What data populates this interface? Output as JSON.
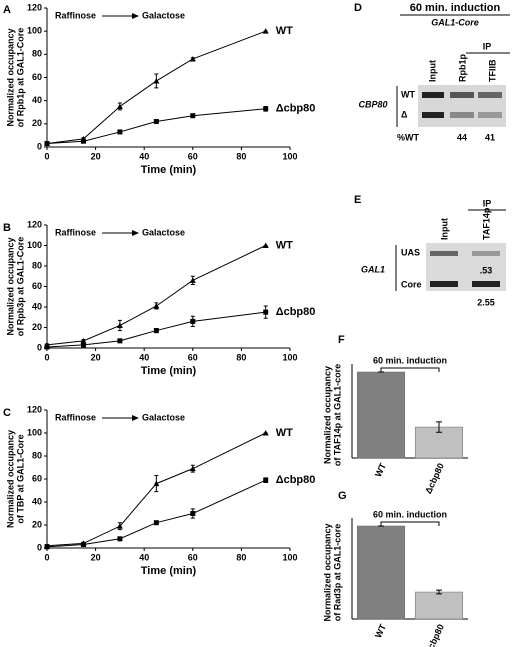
{
  "chart_data": [
    {
      "type": "line",
      "panel": "A",
      "xlabel": "Time (min)",
      "ylabel": [
        "Normalized occupancy",
        "of Rpb1p at GAL1-Core"
      ],
      "annotations": [
        "Raffinose",
        "Galactose"
      ],
      "x": [
        0,
        15,
        30,
        45,
        60,
        90
      ],
      "xlim": [
        0,
        100
      ],
      "xticks": [
        0,
        20,
        40,
        60,
        80,
        100
      ],
      "ylim": [
        0,
        120
      ],
      "yticks": [
        0,
        20,
        40,
        60,
        80,
        100,
        120
      ],
      "series": [
        {
          "name": "WT",
          "color": "#000000",
          "marker": "triangle",
          "values": [
            3,
            7,
            35,
            57,
            76,
            100
          ],
          "errors": [
            1,
            1,
            3,
            6,
            1,
            0
          ]
        },
        {
          "name": "Δcbp80",
          "color": "#000000",
          "marker": "square",
          "values": [
            3,
            5,
            13,
            22,
            27,
            33
          ],
          "errors": [
            1,
            1,
            1,
            1,
            1,
            2
          ]
        }
      ]
    },
    {
      "type": "line",
      "panel": "B",
      "xlabel": "Time (min)",
      "ylabel": [
        "Normalized occupancy",
        "of Rpb3p at GAL1-Core"
      ],
      "annotations": [
        "Raffinose",
        "Galactose"
      ],
      "x": [
        0,
        15,
        30,
        45,
        60,
        90
      ],
      "xlim": [
        0,
        100
      ],
      "xticks": [
        0,
        20,
        40,
        60,
        80,
        100
      ],
      "ylim": [
        0,
        120
      ],
      "yticks": [
        0,
        20,
        40,
        60,
        80,
        100,
        120
      ],
      "series": [
        {
          "name": "WT",
          "color": "#000000",
          "marker": "triangle",
          "values": [
            3,
            7,
            22,
            41,
            66,
            100
          ],
          "errors": [
            1,
            1,
            5,
            3,
            4,
            0
          ]
        },
        {
          "name": "Δcbp80",
          "color": "#000000",
          "marker": "square",
          "values": [
            1,
            3,
            7,
            17,
            26,
            35
          ],
          "errors": [
            0,
            0,
            1,
            2,
            5,
            6
          ]
        }
      ]
    },
    {
      "type": "line",
      "panel": "C",
      "xlabel": "Time (min)",
      "ylabel": [
        "Normalized occupancy",
        "of TBP at GAL1-Core"
      ],
      "annotations": [
        "Raffinose",
        "Galactose"
      ],
      "x": [
        0,
        15,
        30,
        45,
        60,
        90
      ],
      "xlim": [
        0,
        100
      ],
      "xticks": [
        0,
        20,
        40,
        60,
        80,
        100
      ],
      "ylim": [
        0,
        120
      ],
      "yticks": [
        0,
        20,
        40,
        60,
        80,
        100,
        120
      ],
      "series": [
        {
          "name": "WT",
          "color": "#000000",
          "marker": "triangle",
          "values": [
            2,
            4,
            19,
            56,
            69,
            100
          ],
          "errors": [
            1,
            1,
            3,
            7,
            3,
            0
          ]
        },
        {
          "name": "Δcbp80",
          "color": "#000000",
          "marker": "square",
          "values": [
            1,
            3,
            8,
            22,
            30,
            59
          ],
          "errors": [
            0,
            0,
            1,
            1,
            4,
            2
          ]
        }
      ]
    },
    {
      "type": "bar",
      "panel": "F",
      "ylabel": [
        "Normalized occupancy",
        "of TAF14p at GAL1-core"
      ],
      "annotation": "60 min. induction",
      "categories": [
        "WT",
        "Δcbp80"
      ],
      "values": [
        100,
        36
      ],
      "errors": [
        0,
        6
      ],
      "colors": [
        "#808080",
        "#c0c0c0"
      ],
      "ylim": [
        0,
        100
      ]
    },
    {
      "type": "bar",
      "panel": "G",
      "ylabel": [
        "Normalized occupancy",
        "of Rad3p at GAL1-core"
      ],
      "annotation": "60 min. induction",
      "categories": [
        "WT",
        "Δcbp80"
      ],
      "values": [
        100,
        29
      ],
      "errors": [
        0,
        2
      ],
      "colors": [
        "#808080",
        "#c0c0c0"
      ],
      "ylim": [
        0,
        100
      ]
    }
  ],
  "gels": [
    {
      "panel": "D",
      "title": "60 min. induction",
      "subtitle": "GAL1-Core",
      "ip": "IP",
      "lanes": [
        "Input",
        "Rpb1p",
        "TFIIB"
      ],
      "gene": "CBP80",
      "rows": [
        "WT",
        "Δ"
      ],
      "footer": [
        "%WT",
        "44",
        "41"
      ]
    },
    {
      "panel": "E",
      "ip": "IP",
      "lanes": [
        "Input",
        "TAF14p"
      ],
      "gene": "GAL1",
      "rows": [
        "UAS",
        "Core"
      ],
      "ratios": [
        ".53",
        "2.55"
      ]
    }
  ]
}
